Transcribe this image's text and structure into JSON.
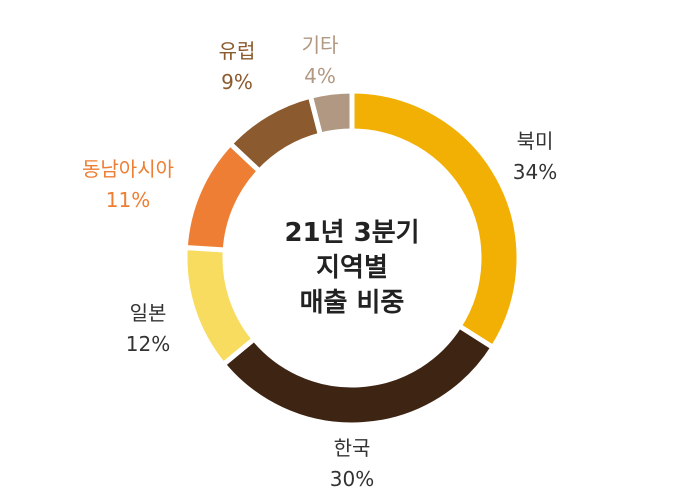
{
  "chart_data": {
    "type": "pie",
    "variant": "donut",
    "center_title": [
      "21년 3분기",
      "지역별",
      "매출 비중"
    ],
    "slices": [
      {
        "label": "북미",
        "value": 34,
        "display": "34%",
        "color": "#F3B004",
        "label_color": "#333333"
      },
      {
        "label": "한국",
        "value": 30,
        "display": "30%",
        "color": "#3E2412",
        "label_color": "#333333"
      },
      {
        "label": "일본",
        "value": 12,
        "display": "12%",
        "color": "#F8DC60",
        "label_color": "#333333"
      },
      {
        "label": "동남아시아",
        "value": 11,
        "display": "11%",
        "color": "#EE7E33",
        "label_color": "#EE7E33"
      },
      {
        "label": "유럽",
        "value": 9,
        "display": "9%",
        "color": "#8B5A2E",
        "label_color": "#8B5A2E"
      },
      {
        "label": "기타",
        "value": 4,
        "display": "4%",
        "color": "#B19882",
        "label_color": "#B19882"
      }
    ]
  }
}
